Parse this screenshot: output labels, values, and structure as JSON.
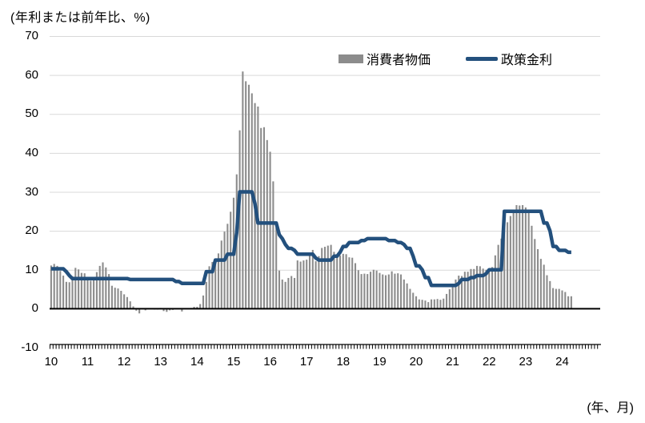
{
  "title": "(年利または前年比、%)",
  "legend": {
    "cpi_label": "消費者物価",
    "rate_label": "政策金利"
  },
  "footer": {
    "axis_unit": "(年、月)"
  },
  "colors": {
    "bar": "#8C8C8C",
    "line": "#23507D",
    "grid": "#D9D9D9",
    "zero_axis": "#000000"
  },
  "chart_data": {
    "type": "bar+line",
    "title": "(年利または前年比、%)",
    "xlabel": "(年、月)",
    "ylabel": "",
    "ylim": [
      -10,
      70
    ],
    "yticks": [
      70,
      60,
      50,
      40,
      30,
      20,
      10,
      0,
      -10
    ],
    "grid": true,
    "legend_position": "top",
    "x_start": "2010-01",
    "x_end_data": "2024-04",
    "axis_months": 181,
    "year_tick_labels": [
      "10",
      "11",
      "12",
      "13",
      "14",
      "15",
      "16",
      "17",
      "18",
      "19",
      "20",
      "21",
      "22",
      "23",
      "24"
    ],
    "series": [
      {
        "name": "消費者物価",
        "type": "bar",
        "values": [
          11.1,
          11.5,
          11.0,
          9.7,
          8.5,
          6.9,
          6.8,
          8.3,
          10.5,
          10.1,
          9.2,
          9.1,
          8.2,
          7.2,
          7.7,
          9.4,
          11.0,
          11.9,
          10.6,
          8.9,
          5.9,
          5.4,
          5.2,
          4.6,
          3.7,
          3.0,
          1.9,
          0.6,
          -0.5,
          -1.2,
          -0.1,
          -0.4,
          0.0,
          0.0,
          -0.2,
          -0.2,
          0.2,
          -0.6,
          -0.8,
          -0.4,
          -0.3,
          0.0,
          -0.1,
          -0.7,
          0.0,
          0.1,
          0.2,
          0.5,
          0.5,
          1.2,
          3.4,
          6.9,
          10.9,
          12.0,
          12.6,
          14.2,
          17.5,
          19.8,
          21.8,
          24.9,
          28.5,
          34.5,
          45.8,
          60.9,
          58.4,
          57.5,
          55.3,
          52.8,
          51.9,
          46.4,
          46.6,
          43.3,
          40.3,
          32.7,
          20.9,
          9.8,
          7.5,
          6.9,
          7.9,
          8.4,
          7.9,
          12.4,
          12.1,
          12.4,
          12.6,
          14.2,
          15.1,
          12.2,
          13.5,
          15.6,
          15.9,
          16.2,
          16.4,
          14.6,
          13.6,
          13.7,
          14.1,
          14.0,
          13.2,
          13.1,
          11.7,
          9.9,
          8.9,
          9.0,
          8.9,
          9.5,
          10.0,
          9.8,
          9.2,
          8.8,
          8.6,
          8.8,
          9.6,
          9.0,
          9.1,
          8.8,
          7.5,
          6.5,
          5.1,
          4.1,
          3.2,
          2.4,
          2.3,
          2.1,
          1.7,
          2.4,
          2.4,
          2.5,
          2.3,
          2.6,
          3.8,
          5.0,
          6.1,
          7.5,
          8.5,
          8.4,
          9.5,
          9.5,
          10.2,
          10.2,
          11.0,
          10.9,
          10.3,
          10.0,
          10.0,
          10.7,
          13.7,
          16.4,
          18.0,
          21.5,
          22.2,
          23.8,
          24.6,
          26.6,
          26.5,
          26.6,
          26.0,
          24.9,
          21.3,
          17.9,
          15.3,
          12.8,
          11.3,
          8.6,
          7.1,
          5.3,
          5.1,
          5.1,
          4.7,
          4.3,
          3.2,
          3.2
        ]
      },
      {
        "name": "政策金利",
        "type": "line",
        "values": [
          10.25,
          10.25,
          10.25,
          10.25,
          10.25,
          9.5,
          8.5,
          7.75,
          7.75,
          7.75,
          7.75,
          7.75,
          7.75,
          7.75,
          7.75,
          7.75,
          7.75,
          7.75,
          7.75,
          7.75,
          7.75,
          7.75,
          7.75,
          7.75,
          7.75,
          7.75,
          7.5,
          7.5,
          7.5,
          7.5,
          7.5,
          7.5,
          7.5,
          7.5,
          7.5,
          7.5,
          7.5,
          7.5,
          7.5,
          7.5,
          7.5,
          7.0,
          7.0,
          6.5,
          6.5,
          6.5,
          6.5,
          6.5,
          6.5,
          6.5,
          6.5,
          9.5,
          9.5,
          9.5,
          12.5,
          12.5,
          12.5,
          12.5,
          14.0,
          14.0,
          14.0,
          19.5,
          30.0,
          30.0,
          30.0,
          30.0,
          30.0,
          27.0,
          22.0,
          22.0,
          22.0,
          22.0,
          22.0,
          22.0,
          22.0,
          19.0,
          18.0,
          16.5,
          15.5,
          15.5,
          15.0,
          14.0,
          14.0,
          14.0,
          14.0,
          14.0,
          14.0,
          13.0,
          12.5,
          12.5,
          12.5,
          12.5,
          12.5,
          13.5,
          13.5,
          14.5,
          16.0,
          16.0,
          17.0,
          17.0,
          17.0,
          17.0,
          17.5,
          17.5,
          18.0,
          18.0,
          18.0,
          18.0,
          18.0,
          18.0,
          18.0,
          17.5,
          17.5,
          17.5,
          17.0,
          17.0,
          16.5,
          15.5,
          15.5,
          13.5,
          11.0,
          11.0,
          10.0,
          8.0,
          8.0,
          6.0,
          6.0,
          6.0,
          6.0,
          6.0,
          6.0,
          6.0,
          6.0,
          6.0,
          6.5,
          7.5,
          7.5,
          7.5,
          8.0,
          8.0,
          8.5,
          8.5,
          8.5,
          9.0,
          10.0,
          10.0,
          10.0,
          10.0,
          10.0,
          25.0,
          25.0,
          25.0,
          25.0,
          25.0,
          25.0,
          25.0,
          25.0,
          25.0,
          25.0,
          25.0,
          25.0,
          25.0,
          22.0,
          22.0,
          20.0,
          16.0,
          16.0,
          15.0,
          15.0,
          15.0,
          14.5,
          14.5
        ]
      }
    ]
  }
}
